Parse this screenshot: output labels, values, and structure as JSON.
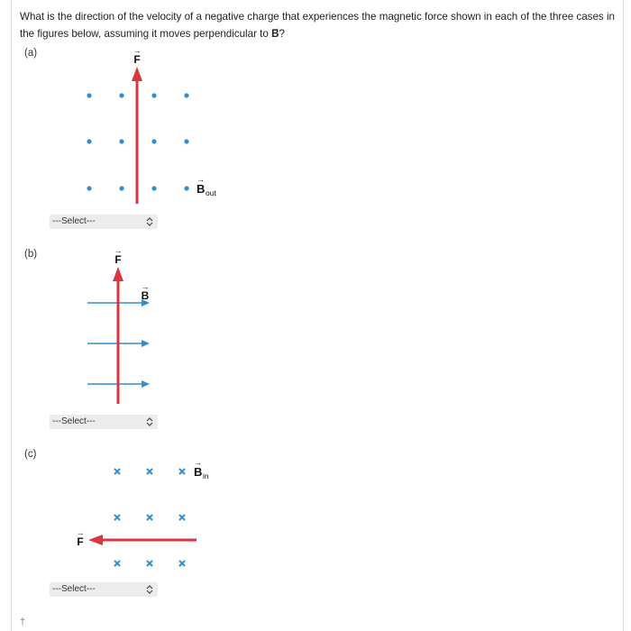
{
  "question": {
    "text_before": "What is the direction of the velocity of a negative charge that experiences the magnetic force shown in each of the three cases in the figures below, assuming it moves perpendicular to",
    "bold_symbol": "B",
    "text_after": "?"
  },
  "parts": [
    {
      "label": "(a)",
      "select_value": "---Select---",
      "force_label": "F",
      "field_label": "B",
      "field_subscript": "out"
    },
    {
      "label": "(b)",
      "select_value": "---Select---",
      "force_label": "F",
      "field_label": "B"
    },
    {
      "label": "(c)",
      "select_value": "---Select---",
      "force_label": "F",
      "field_label": "B",
      "field_subscript": "in"
    }
  ],
  "footer": {
    "marker": "†"
  },
  "colors": {
    "force": "#d9363e",
    "field": "#2f8fd0"
  }
}
